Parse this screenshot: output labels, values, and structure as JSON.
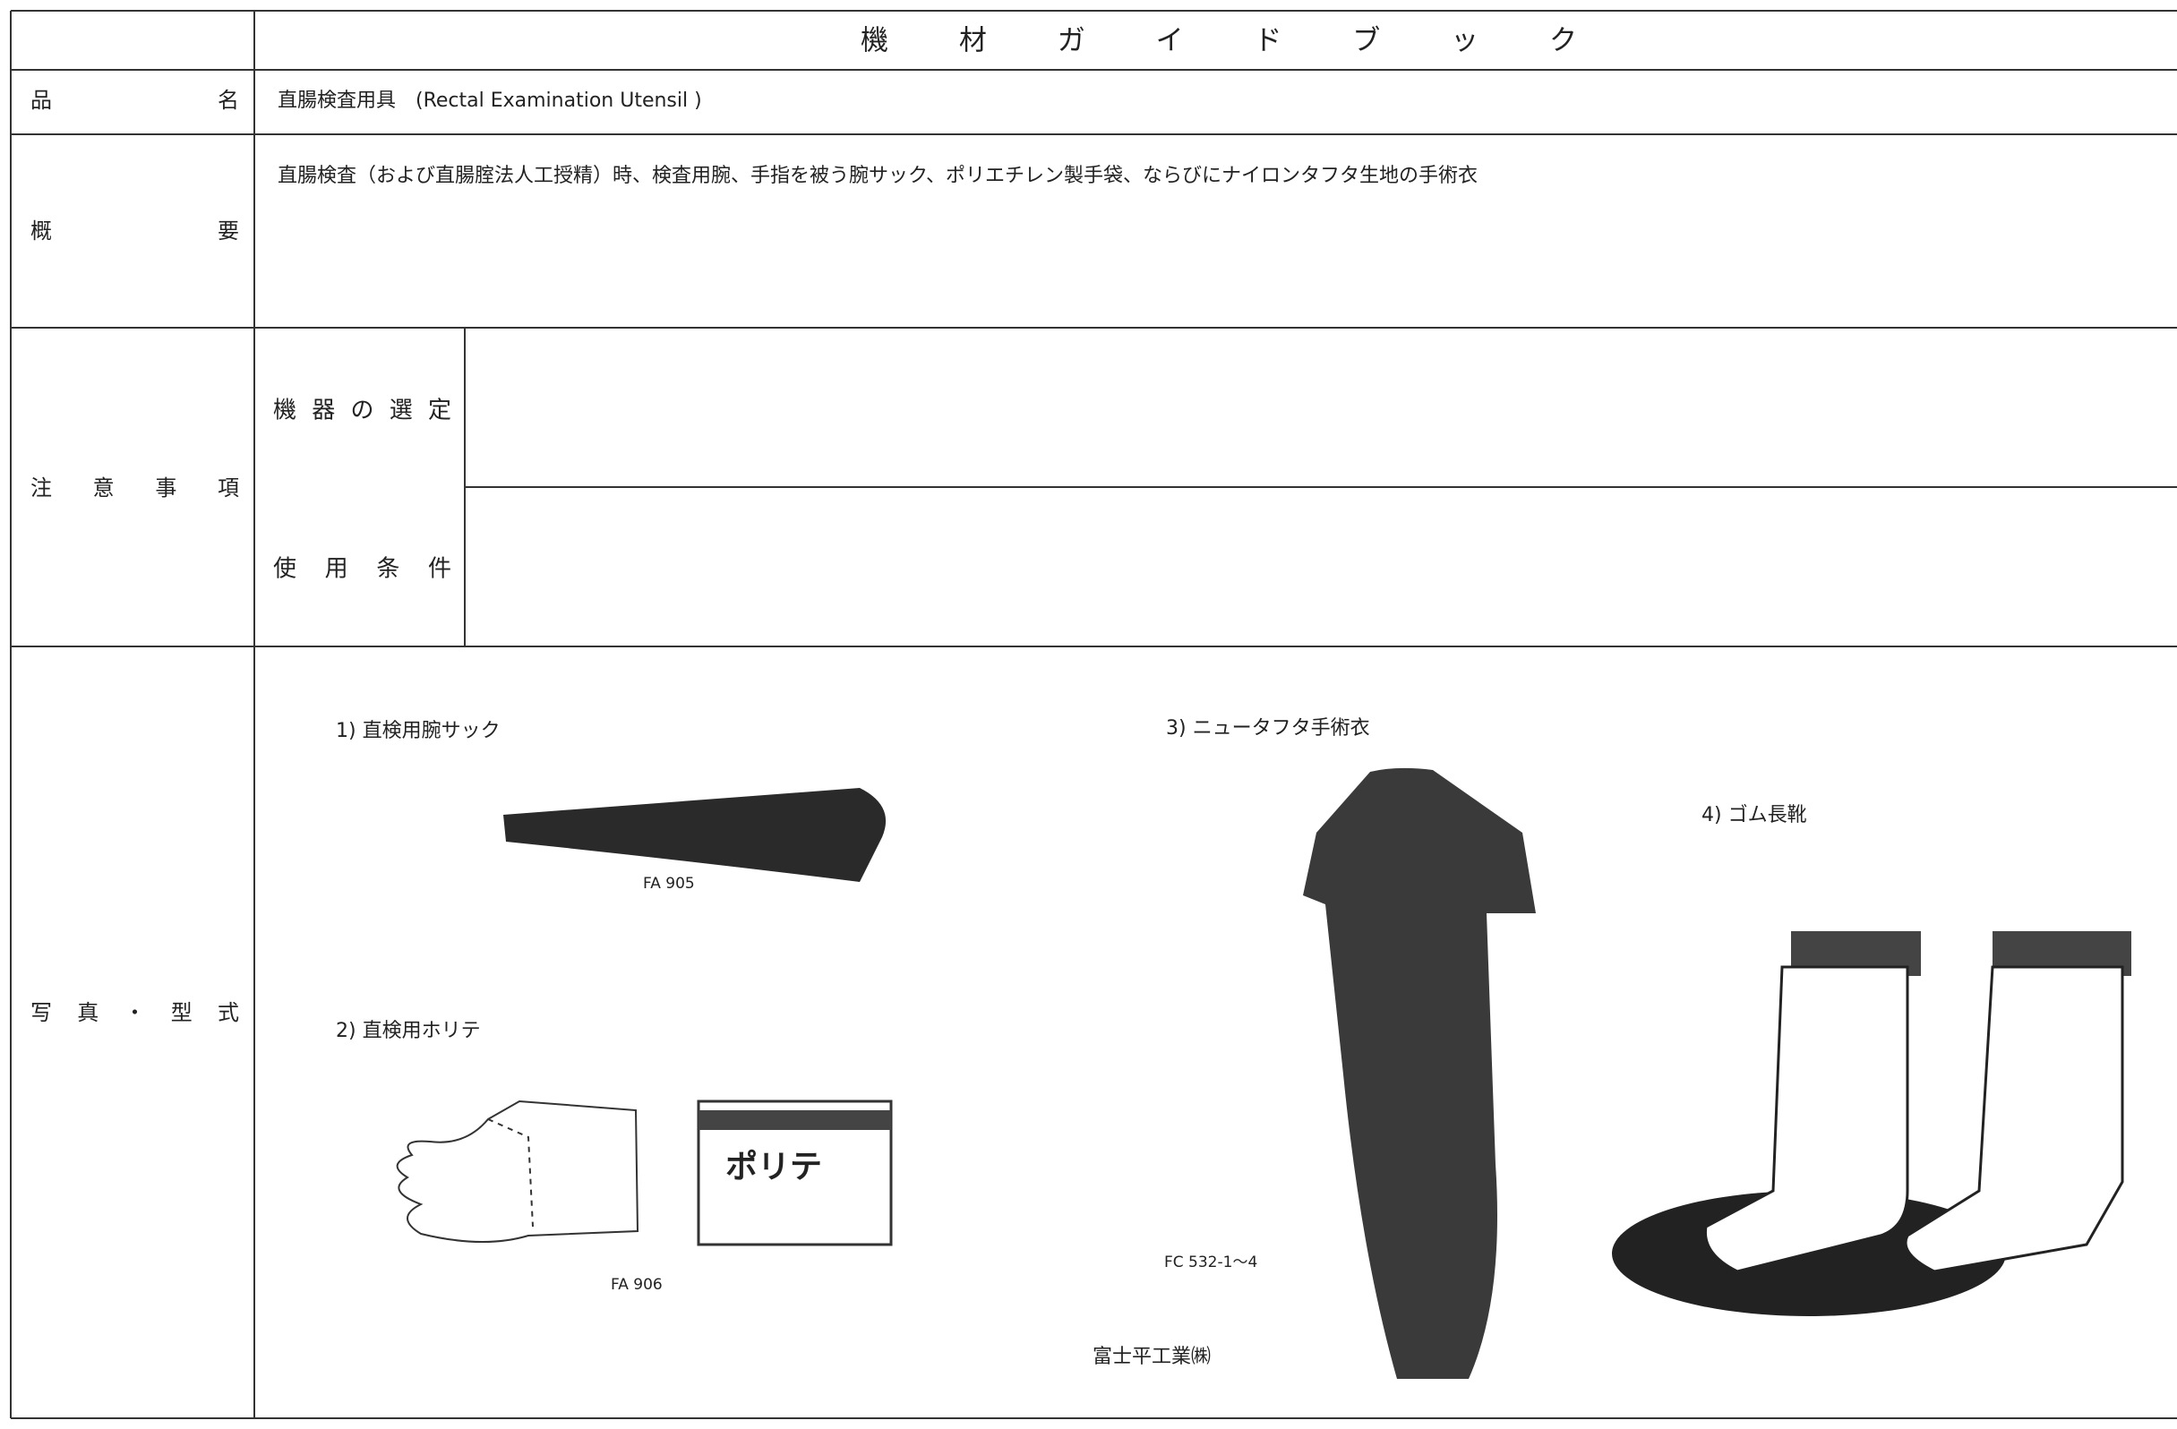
{
  "header": {
    "title": "機材ガイドブック"
  },
  "product": {
    "label": "品名",
    "value": "直腸検査用具　(Rectal Examination Utensil )"
  },
  "overview": {
    "label": "概要",
    "value": "直腸検査（および直腸腟法人工授精）時、検査用腕、手指を被う腕サック、ポリエチレン製手袋、ならびにナイロンタフタ生地の手術衣"
  },
  "notes": {
    "label": "注意事項",
    "items": [
      {
        "label": "機器の選定"
      },
      {
        "label": "使用条件"
      }
    ]
  },
  "photos": {
    "label": "写真・型式",
    "items": [
      {
        "caption": "1) 直検用腕サック",
        "model": "FA 905"
      },
      {
        "caption": "2) 直検用ホリテ",
        "model": "FA 906",
        "package": "ポリテ"
      },
      {
        "caption": "3) ニュータフタ手術衣",
        "model": "FC 532-1～4"
      },
      {
        "caption": "4) ゴム長靴"
      }
    ],
    "maker": "富士平工業㈱"
  }
}
